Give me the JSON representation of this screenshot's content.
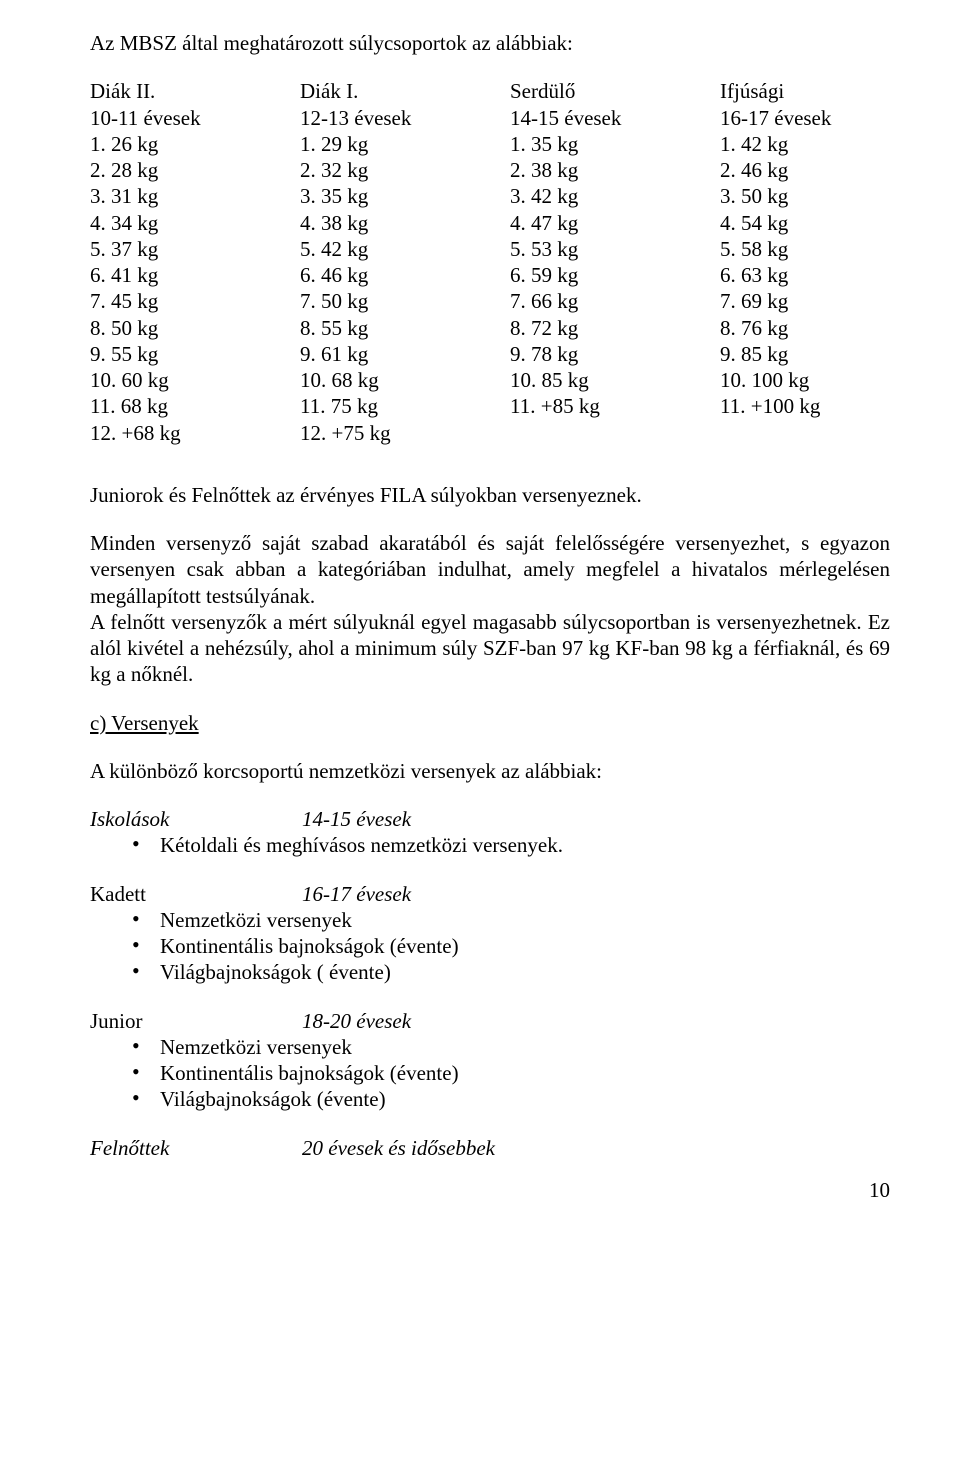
{
  "intro": "Az MBSZ által meghatározott súlycsoportok az alábbiak:",
  "columns": [
    {
      "title": "Diák II.",
      "age": "10-11 évesek",
      "rows": [
        "1. 26 kg",
        "2. 28 kg",
        "3. 31 kg",
        "4. 34 kg",
        "5. 37 kg",
        "6. 41 kg",
        "7. 45 kg",
        "8. 50 kg",
        "9. 55 kg",
        "10. 60 kg",
        "11. 68 kg",
        "12. +68 kg"
      ]
    },
    {
      "title": "Diák I.",
      "age": "12-13 évesek",
      "rows": [
        "1. 29 kg",
        "2. 32 kg",
        "3. 35 kg",
        "4. 38 kg",
        "5. 42 kg",
        "6. 46 kg",
        "7. 50 kg",
        "8. 55 kg",
        "9. 61 kg",
        "10. 68 kg",
        "11. 75 kg",
        "12. +75 kg"
      ]
    },
    {
      "title": "Serdülő",
      "age": "14-15 évesek",
      "rows": [
        "1. 35 kg",
        "2. 38 kg",
        "3. 42 kg",
        "4. 47 kg",
        "5. 53 kg",
        "6. 59 kg",
        "7. 66 kg",
        "8. 72 kg",
        "9. 78 kg",
        "10. 85 kg",
        "11. +85 kg"
      ]
    },
    {
      "title": "Ifjúsági",
      "age": "16-17 évesek",
      "rows": [
        "1. 42 kg",
        "2. 46 kg",
        "3. 50 kg",
        "4. 54 kg",
        "5. 58 kg",
        "6. 63 kg",
        "7. 69 kg",
        "8. 76 kg",
        "9. 85 kg",
        "10. 100 kg",
        "11. +100 kg"
      ]
    }
  ],
  "para1": "Juniorok és Felnőttek az érvényes FILA súlyokban versenyeznek.",
  "para2": "Minden versenyző saját szabad akaratából és saját felelősségére versenyezhet, s egyazon versenyen csak abban a kategóriában indulhat, amely megfelel a hivatalos mérlegelésen megállapított testsúlyának.",
  "para3": "A felnőtt versenyzők a mért súlyuknál egyel magasabb súlycsoportban is versenyezhetnek. Ez alól kivétel a nehézsúly, ahol a minimum súly SZF-ban 97 kg KF-ban 98 kg a férfiaknál,  és 69 kg a nőknél.",
  "section_c": "c) Versenyek",
  "para4": "A különböző korcsoportú nemzetközi versenyek az alábbiak:",
  "iskolasok": {
    "label": "Iskolások",
    "age": "14-15 évesek",
    "items": [
      "Kétoldali és meghívásos nemzetközi versenyek."
    ]
  },
  "kadett": {
    "label": "Kadett",
    "age": "16-17 évesek",
    "items": [
      "Nemzetközi versenyek",
      "Kontinentális bajnokságok (évente)",
      "Világbajnokságok ( évente)"
    ]
  },
  "junior": {
    "label": "Junior",
    "age": "18-20 évesek",
    "items": [
      "Nemzetközi versenyek",
      "Kontinentális bajnokságok (évente)",
      "Világbajnokságok (évente)"
    ]
  },
  "felnottek": {
    "label": "Felnőttek",
    "age": "20 évesek és idősebbek"
  },
  "page_number": "10"
}
